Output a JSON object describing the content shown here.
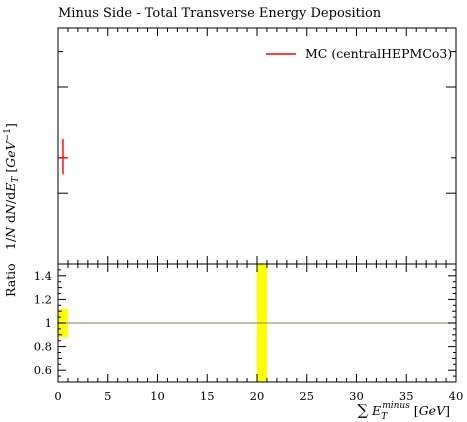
{
  "chart_data": {
    "type": "scatter",
    "title": "Minus Side - Total Transverse Energy Deposition",
    "xlabel": "∑ E_T^minus [GeV]",
    "xlim": [
      0,
      40
    ],
    "x_ticks": [
      {
        "value": 0,
        "label": "0"
      },
      {
        "value": 5,
        "label": "5"
      },
      {
        "value": 10,
        "label": "10"
      },
      {
        "value": 15,
        "label": "15"
      },
      {
        "value": 20,
        "label": "20"
      },
      {
        "value": 25,
        "label": "25"
      },
      {
        "value": 30,
        "label": "30"
      },
      {
        "value": 35,
        "label": "35"
      },
      {
        "value": 40,
        "label": "40"
      }
    ],
    "main_panel": {
      "ylabel": "1/N dN/dE_T [GeV^-1]",
      "tick_labels_shown": false,
      "legend_position": "top-right",
      "series": [
        {
          "name": "MC (centralHEPMCo3)",
          "color": "#ff0000",
          "points": [
            {
              "x": 0.5,
              "x_low": 0.0,
              "x_high": 1.0,
              "y_frac": 0.45,
              "y_err_low_frac": 0.38,
              "y_err_high_frac": 0.53
            }
          ]
        }
      ]
    },
    "ratio_panel": {
      "ylabel": "Ratio",
      "ylim": [
        0.5,
        1.5
      ],
      "y_ticks": [
        {
          "value": 0.6,
          "label": "0.6"
        },
        {
          "value": 0.8,
          "label": "0.8"
        },
        {
          "value": 1.0,
          "label": "1"
        },
        {
          "value": 1.2,
          "label": "1.2"
        },
        {
          "value": 1.4,
          "label": "1.4"
        }
      ],
      "reference_line": 1.0,
      "reference_color": "#a09a78",
      "band_color": "#ffff00",
      "bands": [
        {
          "x_low": 0.0,
          "x_high": 1.0,
          "y_low": 0.88,
          "y_high": 1.12
        },
        {
          "x_low": 20.0,
          "x_high": 21.0,
          "y_low": 0.5,
          "y_high": 1.5
        }
      ]
    }
  }
}
